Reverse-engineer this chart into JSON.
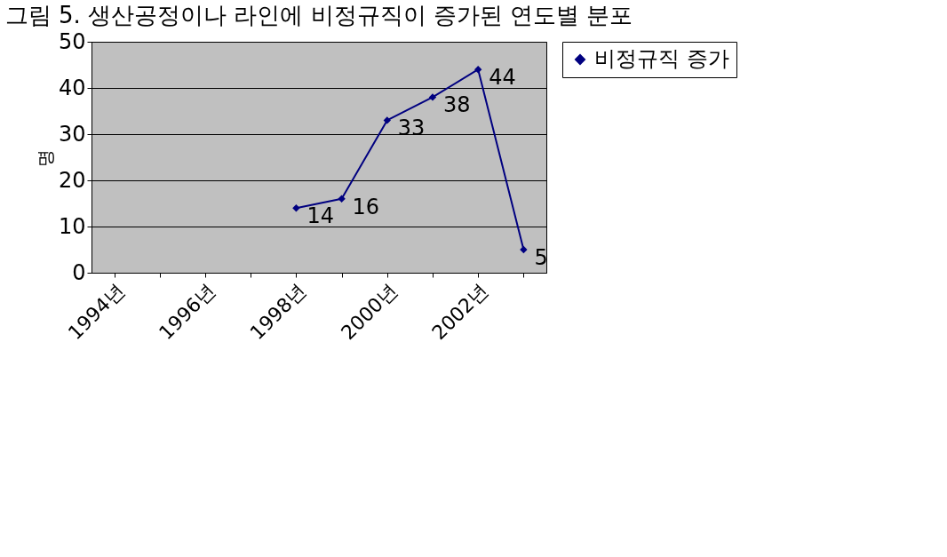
{
  "chart_data": {
    "type": "line",
    "title": "그림 5. 생산공정이나 라인에 비정규직이 증가된 연도별 분포",
    "ylabel": "명",
    "categories": [
      "1994년",
      null,
      "1996년",
      null,
      "1998년",
      null,
      "2000년",
      null,
      "2002년",
      null
    ],
    "series": [
      {
        "name": "비정규직 증가",
        "color": "#000080",
        "values": [
          null,
          null,
          null,
          null,
          14,
          16,
          33,
          38,
          44,
          5
        ]
      }
    ],
    "ylim": [
      0,
      50
    ],
    "yticks": [
      0,
      10,
      20,
      30,
      40,
      50
    ],
    "grid": "y",
    "legend": "right",
    "marker": "diamond",
    "line_style": "solid",
    "data_labels": true
  }
}
